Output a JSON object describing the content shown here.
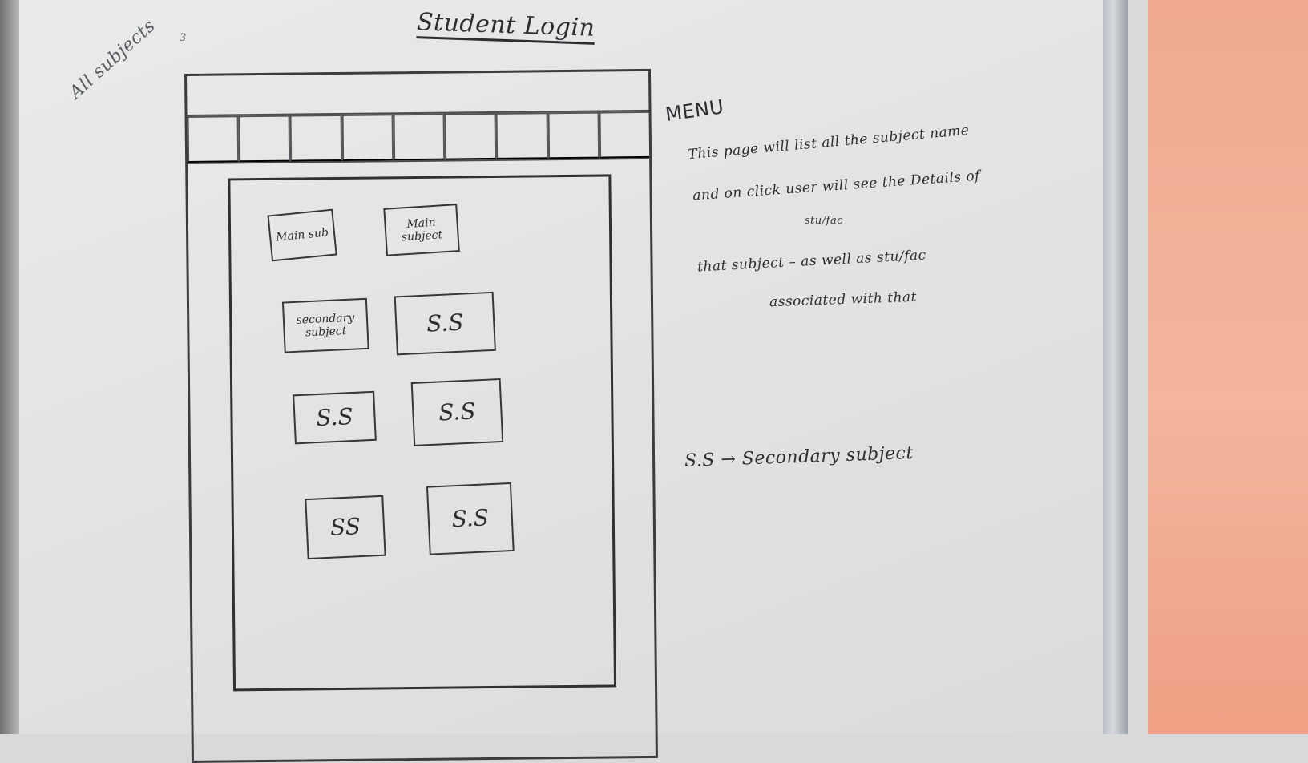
{
  "title": "Student Login",
  "margin_note": "All subjects",
  "margin_note_extra": "3",
  "menu_label": "MENU",
  "menu_cells": [
    "",
    "",
    "",
    "",
    "",
    "",
    "",
    "",
    ""
  ],
  "tiles": [
    {
      "label": "Main sub",
      "kind": "main"
    },
    {
      "label": "Main subject",
      "kind": "main"
    },
    {
      "label": "secondary subject",
      "kind": "sec"
    },
    {
      "label": "S.S",
      "kind": "ss"
    },
    {
      "label": "S.S",
      "kind": "ss"
    },
    {
      "label": "S.S",
      "kind": "ss"
    },
    {
      "label": "SS",
      "kind": "ss"
    },
    {
      "label": "S.S",
      "kind": "ss"
    }
  ],
  "description": {
    "line1": "This page will list all the subject name",
    "line2": "and on click user will see the Details of",
    "line2_insert": "stu/fac",
    "line3": "that subject – as well as stu/fac",
    "line4": "associated with that"
  },
  "legend": "S.S → Secondary subject"
}
